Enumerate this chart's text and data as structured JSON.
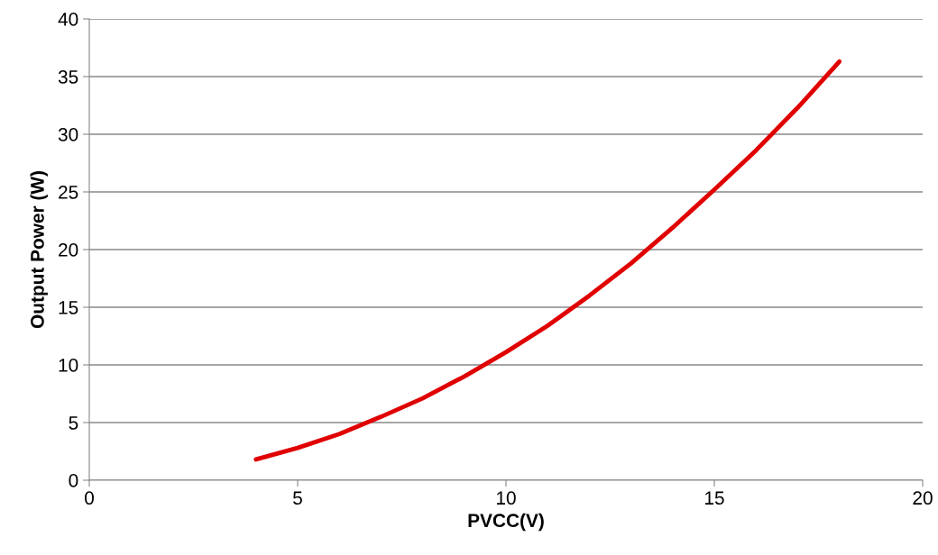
{
  "chart_data": {
    "type": "line",
    "xlabel": "PVCC(V)",
    "ylabel": "Output Power (W)",
    "series": [
      {
        "color": "#e00000",
        "x": [
          4,
          5,
          6,
          7,
          8,
          9,
          10,
          11,
          12,
          13,
          14,
          15,
          16,
          17,
          18
        ],
        "values": [
          1.8,
          2.8,
          4.0,
          5.5,
          7.1,
          9.0,
          11.1,
          13.4,
          16.0,
          18.8,
          21.9,
          25.2,
          28.6,
          32.3,
          36.3
        ]
      }
    ],
    "xlim": [
      0,
      20
    ],
    "xticks": [
      0,
      5,
      10,
      15,
      20
    ],
    "ylim": [
      0,
      40
    ],
    "yticks": [
      0,
      5,
      10,
      15,
      20,
      25,
      30,
      35,
      40
    ],
    "grid": "y",
    "marker": "none",
    "line_style": "solid",
    "legend": false
  }
}
